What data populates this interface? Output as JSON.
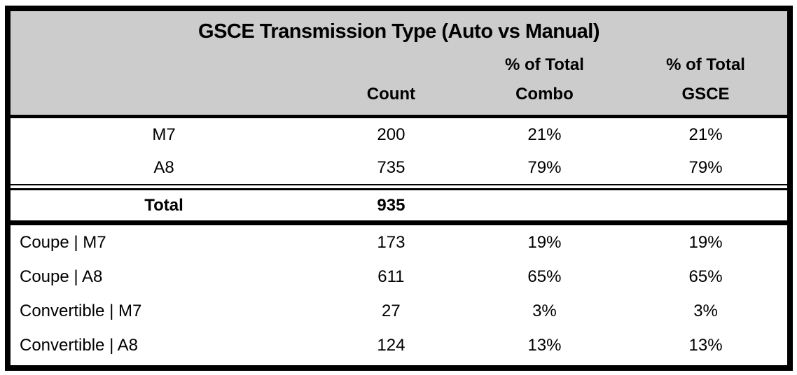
{
  "title": "GSCE Transmission Type (Auto vs Manual)",
  "colors": {
    "header_bg": "#cccccc",
    "border": "#000000",
    "row_bg": "#ffffff",
    "text": "#000000"
  },
  "columns": [
    {
      "id": "label",
      "line1": "",
      "line2": ""
    },
    {
      "id": "count",
      "line1": "",
      "line2": "Count"
    },
    {
      "id": "combo",
      "line1": "% of Total",
      "line2": "Combo"
    },
    {
      "id": "gsce",
      "line1": "% of Total",
      "line2": "GSCE"
    }
  ],
  "sections": {
    "transmission_rows": [
      {
        "label": "M7",
        "count": "200",
        "combo": "21%",
        "gsce": "21%"
      },
      {
        "label": "A8",
        "count": "735",
        "combo": "79%",
        "gsce": "79%"
      }
    ],
    "total_row": {
      "label": "Total",
      "count": "935",
      "combo": "",
      "gsce": ""
    },
    "combo_rows": [
      {
        "label": "Coupe | M7",
        "count": "173",
        "combo": "19%",
        "gsce": "19%"
      },
      {
        "label": "Coupe | A8",
        "count": "611",
        "combo": "65%",
        "gsce": "65%"
      },
      {
        "label": "Convertible | M7",
        "count": "27",
        "combo": "3%",
        "gsce": "3%"
      },
      {
        "label": "Convertible | A8",
        "count": "124",
        "combo": "13%",
        "gsce": "13%"
      }
    ]
  },
  "chart_data": {
    "type": "table",
    "title": "GSCE Transmission Type (Auto vs Manual)",
    "columns": [
      "",
      "Count",
      "% of Total Combo",
      "% of Total GSCE"
    ],
    "rows": [
      [
        "M7",
        200,
        "21%",
        "21%"
      ],
      [
        "A8",
        735,
        "79%",
        "79%"
      ],
      [
        "Total",
        935,
        "",
        ""
      ],
      [
        "Coupe | M7",
        173,
        "19%",
        "19%"
      ],
      [
        "Coupe | A8",
        611,
        "65%",
        "65%"
      ],
      [
        "Convertible | M7",
        27,
        "3%",
        "3%"
      ],
      [
        "Convertible | A8",
        124,
        "13%",
        "13%"
      ]
    ],
    "layout": {
      "header_background": "#cccccc",
      "total_row_bold": true,
      "numeric_alignment": "center",
      "group_rows_alignment": "left"
    }
  }
}
